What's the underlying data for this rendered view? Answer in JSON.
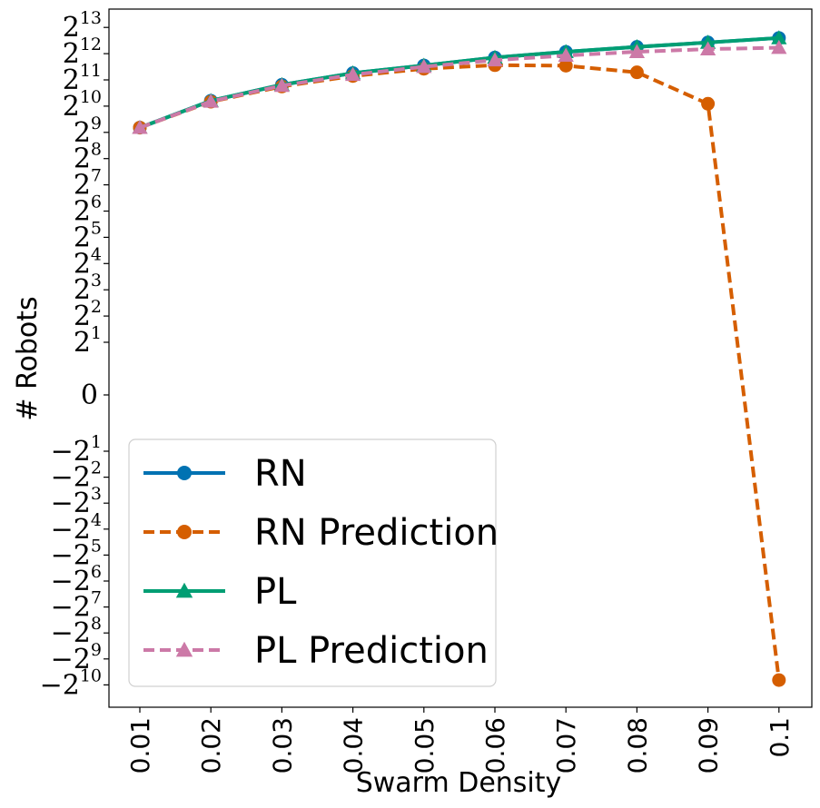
{
  "chart_data": {
    "type": "line",
    "xlabel": "Swarm Density",
    "ylabel": "# Robots",
    "y_scale": "symlog base 2",
    "x_categories": [
      "0.01",
      "0.02",
      "0.03",
      "0.04",
      "0.05",
      "0.06",
      "0.07",
      "0.08",
      "0.09",
      "0.1"
    ],
    "y_ticks": [
      {
        "label": "2",
        "exp": "13",
        "value": 8192
      },
      {
        "label": "2",
        "exp": "12",
        "value": 4096
      },
      {
        "label": "2",
        "exp": "11",
        "value": 2048
      },
      {
        "label": "2",
        "exp": "10",
        "value": 1024
      },
      {
        "label": "2",
        "exp": "9",
        "value": 512
      },
      {
        "label": "2",
        "exp": "8",
        "value": 256
      },
      {
        "label": "2",
        "exp": "7",
        "value": 128
      },
      {
        "label": "2",
        "exp": "6",
        "value": 64
      },
      {
        "label": "2",
        "exp": "5",
        "value": 32
      },
      {
        "label": "2",
        "exp": "4",
        "value": 16
      },
      {
        "label": "2",
        "exp": "3",
        "value": 8
      },
      {
        "label": "2",
        "exp": "2",
        "value": 4
      },
      {
        "label": "2",
        "exp": "1",
        "value": 2
      },
      {
        "label": "0",
        "exp": "",
        "value": 0
      },
      {
        "label": "−2",
        "exp": "1",
        "value": -2
      },
      {
        "label": "−2",
        "exp": "2",
        "value": -4
      },
      {
        "label": "−2",
        "exp": "3",
        "value": -8
      },
      {
        "label": "−2",
        "exp": "4",
        "value": -16
      },
      {
        "label": "−2",
        "exp": "5",
        "value": -32
      },
      {
        "label": "−2",
        "exp": "6",
        "value": -64
      },
      {
        "label": "−2",
        "exp": "7",
        "value": -128
      },
      {
        "label": "−2",
        "exp": "8",
        "value": -256
      },
      {
        "label": "−2",
        "exp": "9",
        "value": -512
      },
      {
        "label": "−2",
        "exp": "10",
        "value": -1024
      }
    ],
    "series": [
      {
        "name": "RN",
        "color": "#0072B2",
        "marker": "circle",
        "dash": false,
        "values": [
          580,
          1180,
          1800,
          2450,
          3000,
          3700,
          4300,
          4900,
          5500,
          6200
        ]
      },
      {
        "name": "RN Prediction",
        "color": "#D55E00",
        "marker": "circle",
        "dash": true,
        "values": [
          580,
          1150,
          1720,
          2270,
          2750,
          3020,
          2980,
          2500,
          1090,
          -900
        ]
      },
      {
        "name": "PL",
        "color": "#009E73",
        "marker": "triangle",
        "dash": false,
        "values": [
          580,
          1180,
          1800,
          2450,
          3000,
          3700,
          4300,
          4900,
          5500,
          6200
        ]
      },
      {
        "name": "PL Prediction",
        "color": "#CC79A7",
        "marker": "triangle",
        "dash": true,
        "values": [
          580,
          1160,
          1760,
          2350,
          2900,
          3450,
          3900,
          4300,
          4620,
          4800
        ]
      }
    ],
    "legend_position": "lower-left"
  }
}
